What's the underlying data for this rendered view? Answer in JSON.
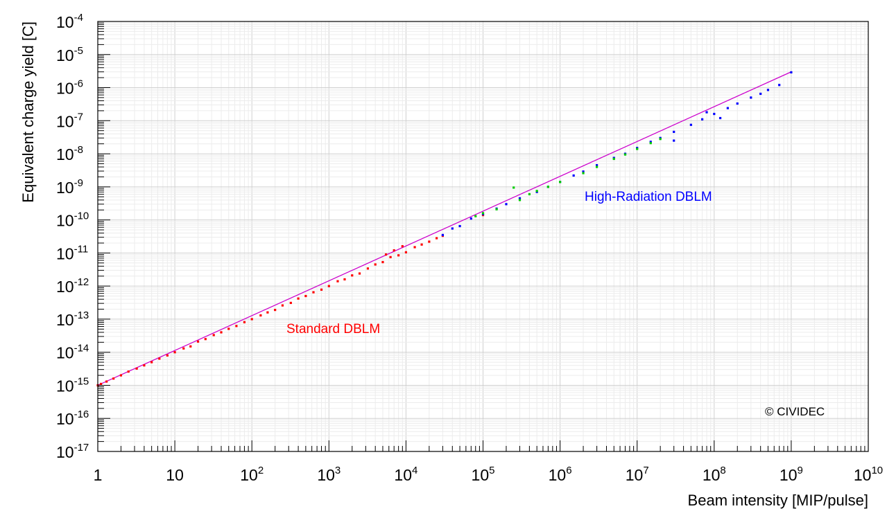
{
  "chart_data": {
    "type": "scatter",
    "xlabel": "Beam intensity [MIP/pulse]",
    "ylabel": "Equivalent charge yield [C]",
    "x_scale": "log",
    "y_scale": "log",
    "xlim": [
      1,
      10000000000
    ],
    "ylim": [
      1e-17,
      0.0001
    ],
    "grid": true,
    "x_ticks": [
      {
        "base": "1",
        "exp": ""
      },
      {
        "base": "10",
        "exp": ""
      },
      {
        "base": "10",
        "exp": "2"
      },
      {
        "base": "10",
        "exp": "3"
      },
      {
        "base": "10",
        "exp": "4"
      },
      {
        "base": "10",
        "exp": "5"
      },
      {
        "base": "10",
        "exp": "6"
      },
      {
        "base": "10",
        "exp": "7"
      },
      {
        "base": "10",
        "exp": "8"
      },
      {
        "base": "10",
        "exp": "9"
      },
      {
        "base": "10",
        "exp": "10"
      }
    ],
    "y_ticks": [
      {
        "base": "10",
        "exp": "-4"
      },
      {
        "base": "10",
        "exp": "-5"
      },
      {
        "base": "10",
        "exp": "-6"
      },
      {
        "base": "10",
        "exp": "-7"
      },
      {
        "base": "10",
        "exp": "-8"
      },
      {
        "base": "10",
        "exp": "-9"
      },
      {
        "base": "10",
        "exp": "-10"
      },
      {
        "base": "10",
        "exp": "-11"
      },
      {
        "base": "10",
        "exp": "-12"
      },
      {
        "base": "10",
        "exp": "-13"
      },
      {
        "base": "10",
        "exp": "-14"
      },
      {
        "base": "10",
        "exp": "-15"
      },
      {
        "base": "10",
        "exp": "-16"
      },
      {
        "base": "10",
        "exp": "-17"
      }
    ],
    "series": [
      {
        "color": "#ff0000",
        "points": [
          [
            1.0,
            1e-15
          ],
          [
            1.1,
            1.1e-15
          ],
          [
            1.3,
            1.3e-15
          ],
          [
            1.6,
            1.6e-15
          ],
          [
            2.0,
            2e-15
          ],
          [
            2.5,
            2.6e-15
          ],
          [
            3.2,
            3.2e-15
          ],
          [
            4.0,
            4e-15
          ],
          [
            5.0,
            5e-15
          ],
          [
            6.3,
            6.4e-15
          ],
          [
            8.0,
            8e-15
          ],
          [
            10,
            1e-14
          ],
          [
            13,
            1.3e-14
          ],
          [
            16,
            1.5e-14
          ],
          [
            20,
            2.1e-14
          ],
          [
            25,
            2.5e-14
          ],
          [
            32,
            3.3e-14
          ],
          [
            40,
            4e-14
          ],
          [
            50,
            5.1e-14
          ],
          [
            63,
            6.2e-14
          ],
          [
            80,
            8.1e-14
          ],
          [
            100,
            1e-13
          ],
          [
            130,
            1.3e-13
          ],
          [
            160,
            1.6e-13
          ],
          [
            200,
            1.9e-13
          ],
          [
            250,
            2.6e-13
          ],
          [
            320,
            3.1e-13
          ],
          [
            400,
            4.2e-13
          ],
          [
            500,
            5e-13
          ],
          [
            630,
            6.5e-13
          ],
          [
            800,
            7.8e-13
          ],
          [
            1000,
            1e-12
          ],
          [
            1300,
            1.4e-12
          ],
          [
            1600,
            1.6e-12
          ],
          [
            2000,
            2.1e-12
          ],
          [
            2500,
            2.4e-12
          ],
          [
            3200,
            3.4e-12
          ],
          [
            4000,
            4.5e-12
          ],
          [
            5000,
            5.3e-12
          ],
          [
            6300,
            7.5e-12
          ],
          [
            8000,
            8.5e-12
          ],
          [
            10000,
            1.05e-11
          ],
          [
            13000,
            1.5e-11
          ],
          [
            16000,
            1.8e-11
          ],
          [
            20000,
            2.2e-11
          ],
          [
            25000,
            2.8e-11
          ],
          [
            30000,
            3.3e-11
          ],
          [
            7000,
            1.2e-11
          ],
          [
            9000,
            1.6e-11
          ],
          [
            5500,
            9e-12
          ],
          [
            100000,
            1.4e-10
          ]
        ]
      },
      {
        "color": "#0000ff",
        "points": [
          [
            30000,
            3.5e-11
          ],
          [
            40000,
            5.5e-11
          ],
          [
            50000,
            6.5e-11
          ],
          [
            70000,
            1.1e-10
          ],
          [
            100000,
            1.5e-10
          ],
          [
            150000,
            2.2e-10
          ],
          [
            200000,
            3e-10
          ],
          [
            300000,
            4.5e-10
          ],
          [
            500000,
            7e-10
          ],
          [
            700000,
            1e-09
          ],
          [
            1000000,
            1.4e-09
          ],
          [
            1500000,
            2.2e-09
          ],
          [
            2000000,
            2.9e-09
          ],
          [
            3000000,
            4.5e-09
          ],
          [
            5000000,
            7.5e-09
          ],
          [
            7000000,
            1e-08
          ],
          [
            10000000,
            1.5e-08
          ],
          [
            15000000,
            2.3e-08
          ],
          [
            20000000,
            3e-08
          ],
          [
            30000000,
            4.6e-08
          ],
          [
            50000000,
            7.5e-08
          ],
          [
            70000000,
            1.1e-07
          ],
          [
            100000000,
            1.6e-07
          ],
          [
            150000000,
            2.4e-07
          ],
          [
            200000000,
            3.3e-07
          ],
          [
            300000000,
            5e-07
          ],
          [
            500000000,
            8.5e-07
          ],
          [
            700000000,
            1.2e-06
          ],
          [
            1000000000,
            2.9e-06
          ],
          [
            400000000,
            6.5e-07
          ],
          [
            80000000,
            1.8e-07
          ],
          [
            120000000,
            1.2e-07
          ],
          [
            30000000,
            2.5e-08
          ]
        ]
      },
      {
        "color": "#00cc00",
        "points": [
          [
            80000,
            1.3e-10
          ],
          [
            100000,
            1.6e-10
          ],
          [
            150000,
            2.1e-10
          ],
          [
            250000,
            9.5e-10
          ],
          [
            300000,
            4e-10
          ],
          [
            400000,
            6e-10
          ],
          [
            500000,
            7.5e-10
          ],
          [
            700000,
            1e-09
          ],
          [
            1000000,
            1.4e-09
          ],
          [
            2000000,
            2.6e-09
          ],
          [
            3000000,
            4e-09
          ],
          [
            5000000,
            7e-09
          ],
          [
            7000000,
            9.5e-09
          ],
          [
            10000000,
            1.4e-08
          ],
          [
            15000000,
            2.1e-08
          ],
          [
            20000000,
            2.8e-08
          ]
        ]
      }
    ],
    "fit_line": {
      "color": "#cc00cc",
      "from": [
        1,
        1e-15
      ],
      "to": [
        1000000000,
        3e-06
      ]
    },
    "annotations": {
      "standard": {
        "text": "Standard DBLM",
        "color": "#ff0000"
      },
      "highrad": {
        "text": "High-Radiation DBLM",
        "color": "#0000ff"
      },
      "copyright": {
        "text": "© CIVIDEC",
        "color": "#000000"
      }
    }
  }
}
